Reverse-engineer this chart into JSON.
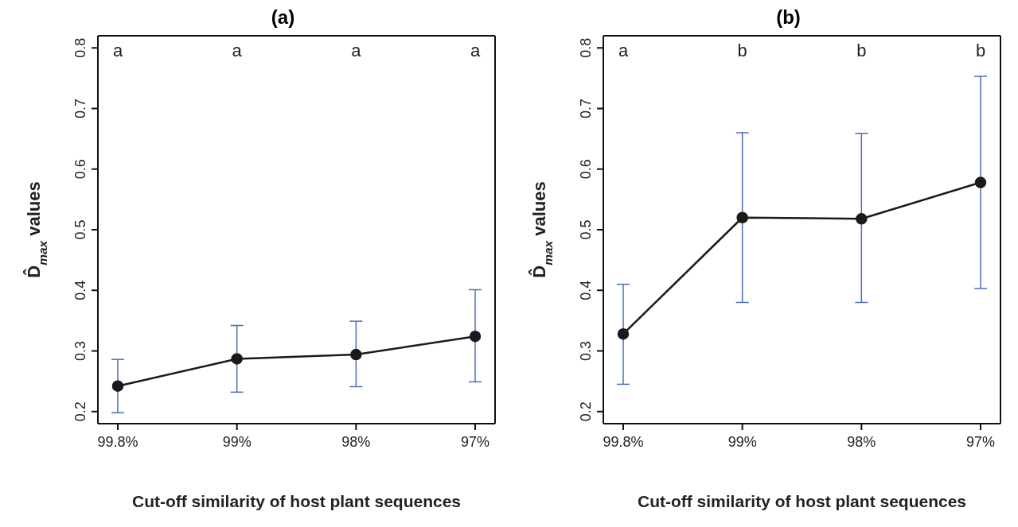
{
  "chart_data": [
    {
      "type": "line",
      "title": "(a)",
      "xlabel": "Cut-off similarity of host plant sequences",
      "ylabel": "D̂$_{max}$ values",
      "categories": [
        "99.8%",
        "99%",
        "98%",
        "97%"
      ],
      "series": [
        {
          "color": "#1a1a1a",
          "values": [
            0.242,
            0.287,
            0.294,
            0.324
          ],
          "errors": [
            [
              0.198,
              0.286
            ],
            [
              0.232,
              0.342
            ],
            [
              0.241,
              0.349
            ],
            [
              0.249,
              0.401
            ]
          ]
        }
      ],
      "ylim": [
        0.18,
        0.82
      ],
      "yticks": [
        0.2,
        0.3,
        0.4,
        0.5,
        0.6,
        0.7,
        0.8
      ],
      "grid": false,
      "legend": false,
      "marker": "circle",
      "line_style": "solid",
      "annotations": [
        "a",
        "a",
        "a",
        "a"
      ]
    },
    {
      "type": "line",
      "title": "(b)",
      "xlabel": "Cut-off similarity of host plant sequences",
      "ylabel": "D̂$_{max}$ values",
      "categories": [
        "99.8%",
        "99%",
        "98%",
        "97%"
      ],
      "series": [
        {
          "color": "#1a1a1a",
          "values": [
            0.328,
            0.52,
            0.518,
            0.578
          ],
          "errors": [
            [
              0.245,
              0.41
            ],
            [
              0.38,
              0.66
            ],
            [
              0.38,
              0.659
            ],
            [
              0.403,
              0.753
            ]
          ]
        }
      ],
      "ylim": [
        0.18,
        0.82
      ],
      "yticks": [
        0.2,
        0.3,
        0.4,
        0.5,
        0.6,
        0.7,
        0.8
      ],
      "grid": false,
      "legend": false,
      "marker": "circle",
      "line_style": "solid",
      "annotations": [
        "a",
        "b",
        "b",
        "b"
      ]
    }
  ]
}
